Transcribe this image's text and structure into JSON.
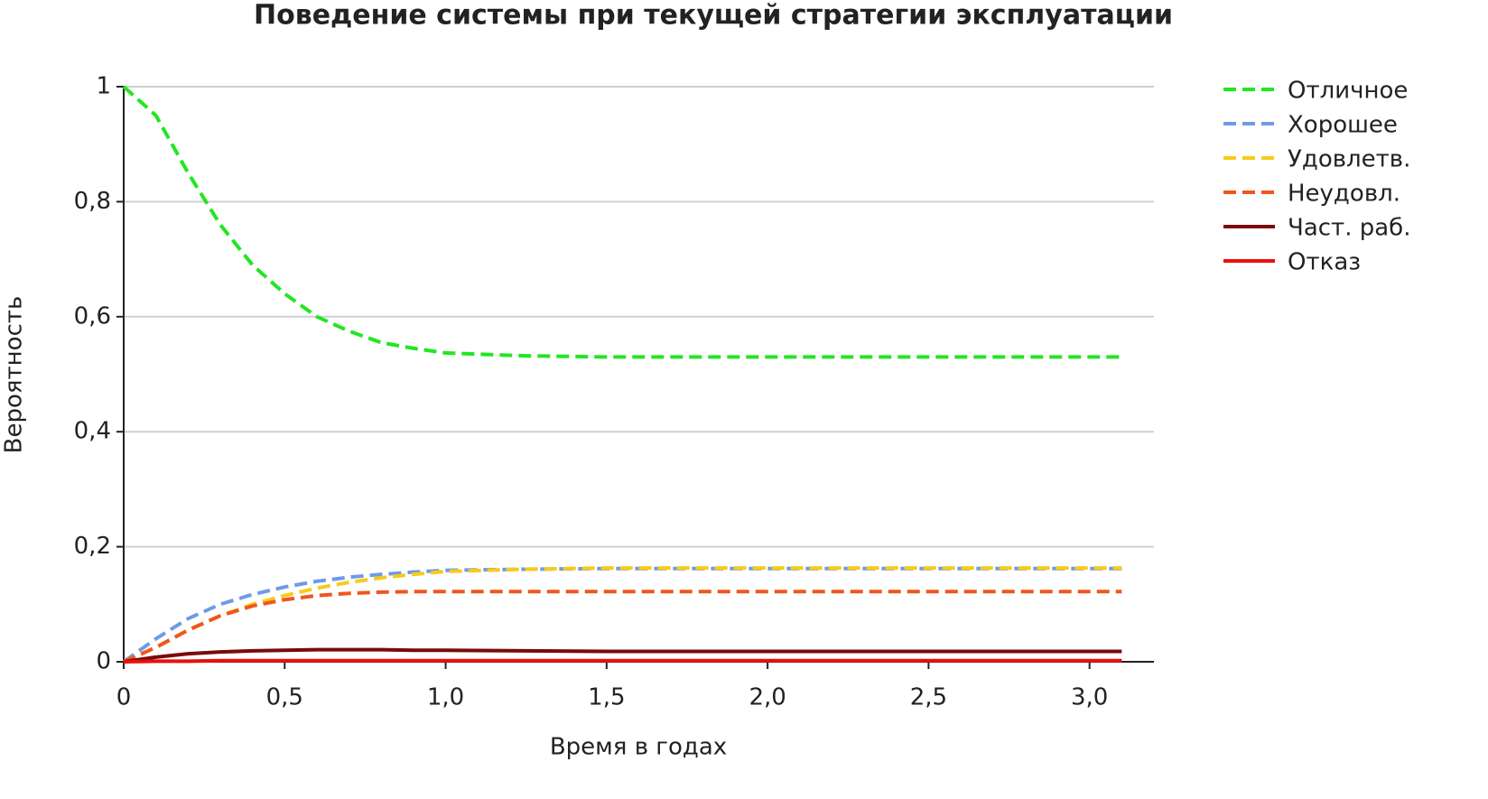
{
  "chart_data": {
    "type": "line",
    "title": "Поведение системы при текущей стратегии эксплуатации",
    "xlabel": "Время в годах",
    "ylabel": "Вероятность",
    "x": [
      0,
      0.1,
      0.2,
      0.3,
      0.4,
      0.5,
      0.6,
      0.7,
      0.8,
      0.9,
      1.0,
      1.25,
      1.5,
      2.0,
      2.5,
      3.1
    ],
    "series": [
      {
        "name": "Отличное",
        "color": "#22e622",
        "dashed": true,
        "values": [
          1,
          0.95,
          0.85,
          0.76,
          0.69,
          0.64,
          0.6,
          0.575,
          0.555,
          0.545,
          0.537,
          0.532,
          0.53,
          0.53,
          0.53,
          0.53
        ]
      },
      {
        "name": "Хорошее",
        "color": "#6f9be6",
        "dashed": true,
        "values": [
          0,
          0.04,
          0.075,
          0.1,
          0.117,
          0.13,
          0.14,
          0.147,
          0.152,
          0.156,
          0.159,
          0.161,
          0.162,
          0.162,
          0.162,
          0.162
        ]
      },
      {
        "name": "Удовлетв.",
        "color": "#f5cc1c",
        "dashed": true,
        "values": [
          0,
          0.025,
          0.055,
          0.08,
          0.1,
          0.115,
          0.128,
          0.138,
          0.146,
          0.152,
          0.157,
          0.161,
          0.163,
          0.163,
          0.163,
          0.163
        ]
      },
      {
        "name": "Неудовл.",
        "color": "#f0561e",
        "dashed": true,
        "values": [
          0,
          0.025,
          0.055,
          0.08,
          0.097,
          0.108,
          0.115,
          0.119,
          0.121,
          0.122,
          0.122,
          0.122,
          0.122,
          0.122,
          0.122,
          0.122
        ]
      },
      {
        "name": "Част. раб.",
        "color": "#7a0a0a",
        "dashed": false,
        "values": [
          0,
          0.008,
          0.014,
          0.017,
          0.019,
          0.02,
          0.021,
          0.021,
          0.021,
          0.02,
          0.02,
          0.019,
          0.018,
          0.018,
          0.018,
          0.018
        ]
      },
      {
        "name": "Отказ",
        "color": "#e81010",
        "dashed": false,
        "values": [
          0,
          0.001,
          0.001,
          0.002,
          0.002,
          0.002,
          0.002,
          0.002,
          0.002,
          0.002,
          0.002,
          0.002,
          0.002,
          0.002,
          0.002,
          0.002
        ]
      }
    ],
    "xlim": [
      0,
      3.2
    ],
    "ylim": [
      0,
      1
    ],
    "xticks": [
      0,
      {
        "value": 0.5,
        "label": "0,5"
      },
      {
        "value": 1.0,
        "label": "1,0"
      },
      {
        "value": 1.5,
        "label": "1,5"
      },
      {
        "value": 2.0,
        "label": "2,0"
      },
      {
        "value": 2.5,
        "label": "2,5"
      },
      {
        "value": 3.0,
        "label": "3,0"
      }
    ],
    "yticks": [
      0,
      {
        "value": 0.2,
        "label": "0,2"
      },
      {
        "value": 0.4,
        "label": "0,4"
      },
      {
        "value": 0.6,
        "label": "0,6"
      },
      {
        "value": 0.8,
        "label": "0,8"
      },
      1
    ],
    "grid": true,
    "legend": "right"
  }
}
